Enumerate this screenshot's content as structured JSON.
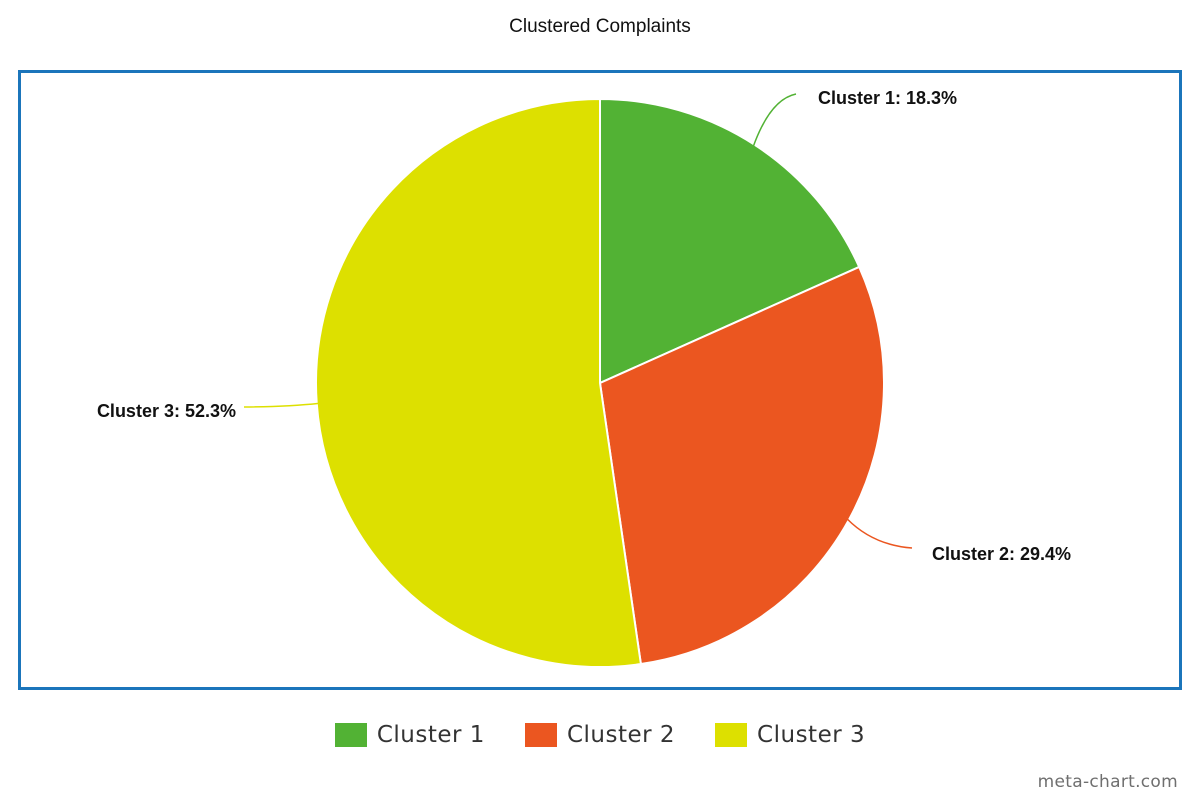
{
  "chart_data": {
    "type": "pie",
    "title": "Clustered Complaints",
    "categories": [
      "Cluster 1",
      "Cluster 2",
      "Cluster 3"
    ],
    "values": [
      18.3,
      29.4,
      52.3
    ],
    "colors": [
      "#52b234",
      "#eb5620",
      "#dde000"
    ],
    "data_labels": [
      "Cluster 1: 18.3%",
      "Cluster 2: 29.4%",
      "Cluster 3: 52.3%"
    ],
    "start_angle_deg": 0,
    "direction": "clockwise",
    "legend_position": "bottom",
    "frame_color": "#1b75bb"
  },
  "watermark": "meta-chart.com"
}
